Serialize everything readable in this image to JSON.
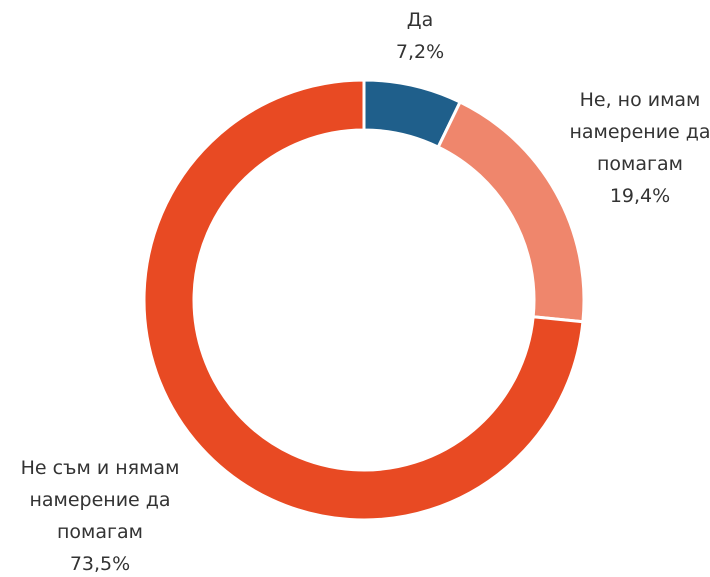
{
  "chart_data": {
    "type": "donut",
    "categories": [
      "Да",
      "Не, но имам намерение да помагам",
      "Не съм и нямам намерение да помагам"
    ],
    "values": [
      7.2,
      19.4,
      73.5
    ],
    "value_labels": [
      "7,2%",
      "19,4%",
      "73,5%"
    ],
    "colors": [
      "#1f5f8b",
      "#ef866c",
      "#e84a23"
    ]
  }
}
